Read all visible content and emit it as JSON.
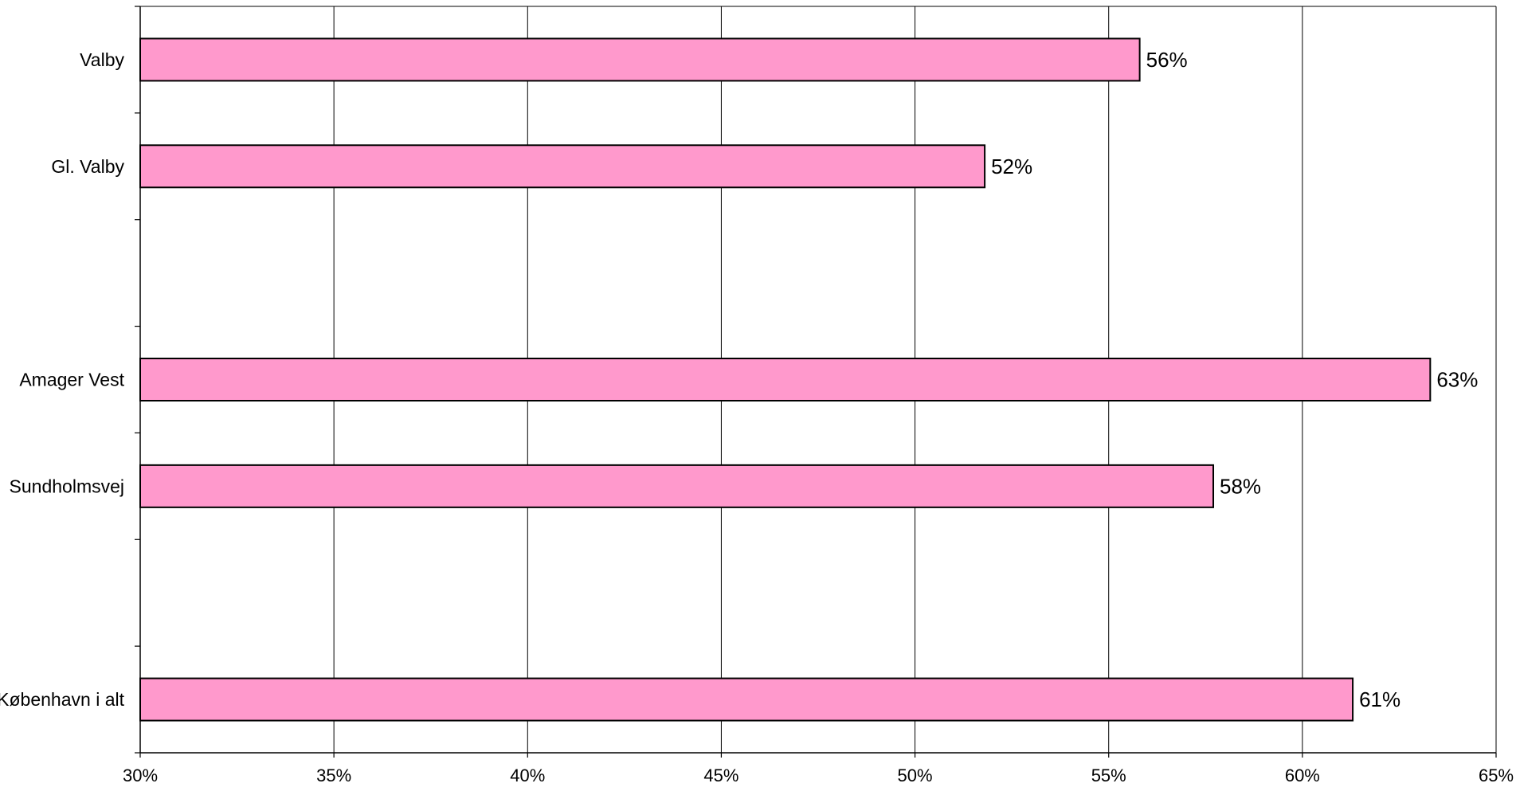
{
  "chart_data": {
    "type": "bar",
    "orientation": "horizontal",
    "categories": [
      "Valby",
      "Gl. Valby",
      "",
      "Amager Vest",
      "Sundholmsvej",
      "",
      "København i alt"
    ],
    "values": [
      55.8,
      51.8,
      null,
      63.3,
      57.7,
      null,
      61.3
    ],
    "data_labels": [
      "56%",
      "52%",
      "",
      "63%",
      "58%",
      "",
      "61%"
    ],
    "x_ticks": [
      "30%",
      "35%",
      "40%",
      "45%",
      "50%",
      "55%",
      "60%",
      "65%"
    ],
    "xlim": [
      30,
      65
    ],
    "xlabel": "",
    "ylabel": "",
    "title": "",
    "grid": "vertical",
    "colors": {
      "bar": "#ff99cc",
      "bar_stroke": "#000000",
      "grid": "#000000"
    }
  }
}
